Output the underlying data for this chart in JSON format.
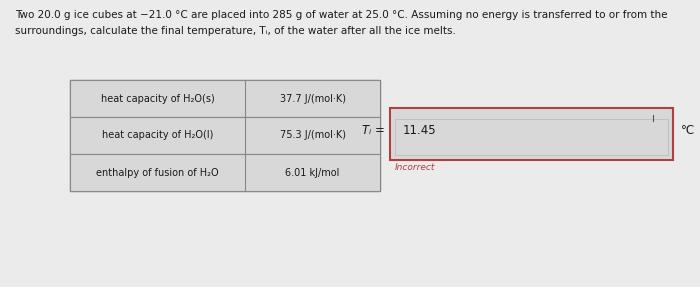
{
  "title_line1": "Two 20.0 g ice cubes at −21.0 °C are placed into 285 g of water at 25.0 °C. Assuming no energy is transferred to or from the",
  "title_line2": "surroundings, calculate the final temperature, Tᵢ, of the water after all the ice melts.",
  "table_rows": [
    [
      "heat capacity of H₂O(s)",
      "37.7 J/(mol·K)"
    ],
    [
      "heat capacity of H₂O(l)",
      "75.3 J/(mol·K)"
    ],
    [
      "enthalpy of fusion of H₂O",
      "6.01 kJ/mol"
    ]
  ],
  "answer_label": "Tᵢ =",
  "answer_value": "11.45",
  "answer_unit": "°C",
  "incorrect_text": "Incorrect",
  "bg_color": "#ebebeb",
  "text_color": "#1a1a1a",
  "answer_box_border": "#b04040",
  "answer_inner_bg": "#e8e8e8",
  "answer_inner_border": "#c0c0c0",
  "incorrect_color": "#b04040",
  "table_border_color": "#888888",
  "table_bg_color": "#d8d8d8"
}
